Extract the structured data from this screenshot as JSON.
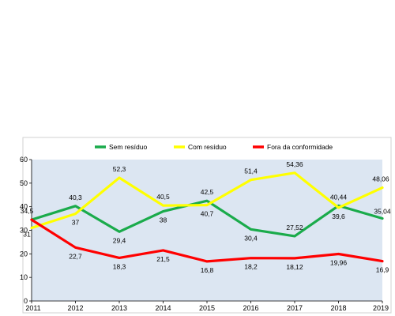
{
  "chart_data": {
    "type": "line",
    "title": "",
    "xlabel": "",
    "ylabel": "",
    "x": [
      "2011",
      "2012",
      "2013",
      "2014",
      "2015",
      "2016",
      "2017",
      "2018",
      "2019"
    ],
    "ylim": [
      0,
      60
    ],
    "yticks": [
      "0",
      "10",
      "20",
      "30",
      "40",
      "50",
      "60"
    ],
    "grid": false,
    "legend_position": "top",
    "plot_background": "#dce6f2",
    "series": [
      {
        "name": "Sem resíduo",
        "color": "#1aab4b",
        "values": [
          34.5,
          40.3,
          29.4,
          38,
          42.5,
          30.4,
          27.52,
          40.44,
          35.04
        ],
        "labels": [
          "34,5",
          "40,3",
          "29,4",
          "38",
          "42,5",
          "30,4",
          "27,52",
          "40,44",
          "35,04"
        ]
      },
      {
        "name": "Com resíduo",
        "color": "#ffff00",
        "values": [
          31,
          37,
          52.3,
          40.5,
          40.7,
          51.4,
          54.36,
          39.6,
          48.06
        ],
        "labels": [
          "31",
          "37",
          "52,3",
          "40,5",
          "40,7",
          "51,4",
          "54,36",
          "39,6",
          "48,06"
        ]
      },
      {
        "name": "Fora da conformidade",
        "color": "#ff0000",
        "values": [
          34.5,
          22.7,
          18.3,
          21.5,
          16.8,
          18.2,
          18.12,
          19.96,
          16.9
        ],
        "labels": [
          "",
          "22,7",
          "18,3",
          "21,5",
          "16,8",
          "18,2",
          "18,12",
          "19,96",
          "16,9"
        ]
      }
    ]
  }
}
